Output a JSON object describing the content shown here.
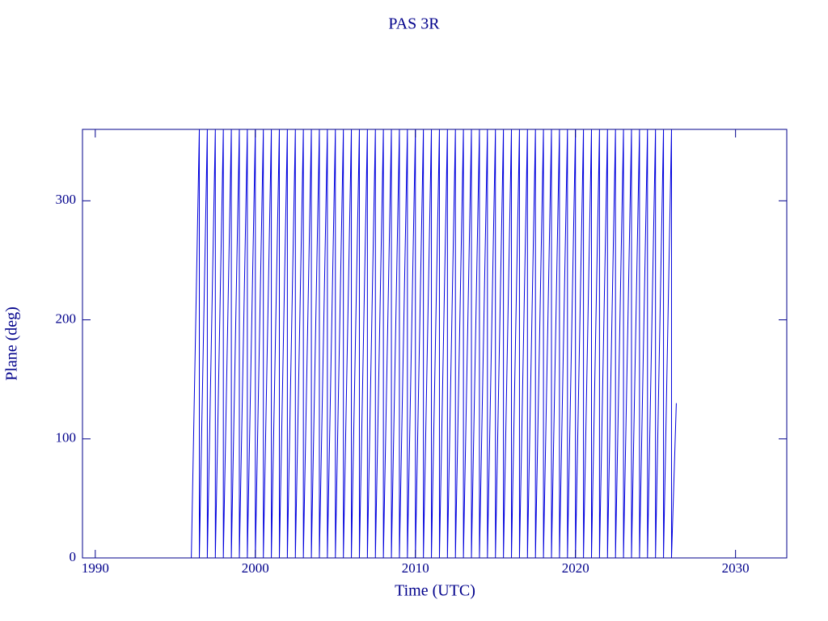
{
  "chart_data": {
    "type": "line",
    "title": "PAS 3R",
    "x_label": "Time (UTC)",
    "y_label": "Plane (deg)",
    "xlim": [
      1989.2,
      2033.2
    ],
    "ylim": [
      0,
      360
    ],
    "xticks": [
      1990,
      2000,
      2010,
      2020,
      2030
    ],
    "yticks": [
      0,
      100,
      200,
      300
    ],
    "axis_color": "#00008b",
    "series": [
      {
        "name": "Plane",
        "color": "#0000dd",
        "x": [
          1996.0,
          1996.5,
          1996.5,
          1997,
          1997,
          1997.5,
          1997.5,
          1998,
          1998,
          1998.5,
          1998.5,
          1999,
          1999,
          1999.5,
          1999.5,
          2000,
          2000,
          2000.5,
          2000.5,
          2001,
          2001,
          2001.5,
          2001.5,
          2002,
          2002,
          2002.5,
          2002.5,
          2003,
          2003,
          2003.5,
          2003.5,
          2004,
          2004,
          2004.5,
          2004.5,
          2005,
          2005,
          2005.5,
          2005.5,
          2006,
          2006,
          2006.5,
          2006.5,
          2007,
          2007,
          2007.5,
          2007.5,
          2008,
          2008,
          2008.5,
          2008.5,
          2009,
          2009,
          2009.5,
          2009.5,
          2010,
          2010,
          2010.5,
          2010.5,
          2011,
          2011,
          2011.5,
          2011.5,
          2012,
          2012,
          2012.5,
          2012.5,
          2013,
          2013,
          2013.5,
          2013.5,
          2014,
          2014,
          2014.5,
          2014.5,
          2015,
          2015,
          2015.5,
          2015.5,
          2016,
          2016,
          2016.5,
          2016.5,
          2017,
          2017,
          2017.5,
          2017.5,
          2018,
          2018,
          2018.5,
          2018.5,
          2019,
          2019,
          2019.5,
          2019.5,
          2020,
          2020,
          2020.5,
          2020.5,
          2021,
          2021,
          2021.5,
          2021.5,
          2022,
          2022,
          2022.5,
          2022.5,
          2023,
          2023,
          2023.5,
          2023.5,
          2024,
          2024,
          2024.5,
          2024.5,
          2025,
          2025,
          2025.5,
          2025.5,
          2026,
          2026,
          2026.3
        ],
        "values": [
          0,
          360,
          0,
          360,
          0,
          360,
          0,
          360,
          0,
          360,
          0,
          360,
          0,
          360,
          0,
          360,
          0,
          360,
          0,
          360,
          0,
          360,
          0,
          360,
          0,
          360,
          0,
          360,
          0,
          360,
          0,
          360,
          0,
          360,
          0,
          360,
          0,
          360,
          0,
          360,
          0,
          360,
          0,
          360,
          0,
          360,
          0,
          360,
          0,
          360,
          0,
          360,
          0,
          360,
          0,
          360,
          0,
          360,
          0,
          360,
          0,
          360,
          0,
          360,
          0,
          360,
          0,
          360,
          0,
          360,
          0,
          360,
          0,
          360,
          0,
          360,
          0,
          360,
          0,
          360,
          0,
          360,
          0,
          360,
          0,
          360,
          0,
          360,
          0,
          360,
          0,
          360,
          0,
          360,
          0,
          360,
          0,
          360,
          0,
          360,
          0,
          360,
          0,
          360,
          0,
          360,
          0,
          360,
          0,
          360,
          0,
          360,
          0,
          360,
          0,
          360,
          0,
          360,
          0,
          360,
          0,
          130
        ]
      }
    ]
  }
}
